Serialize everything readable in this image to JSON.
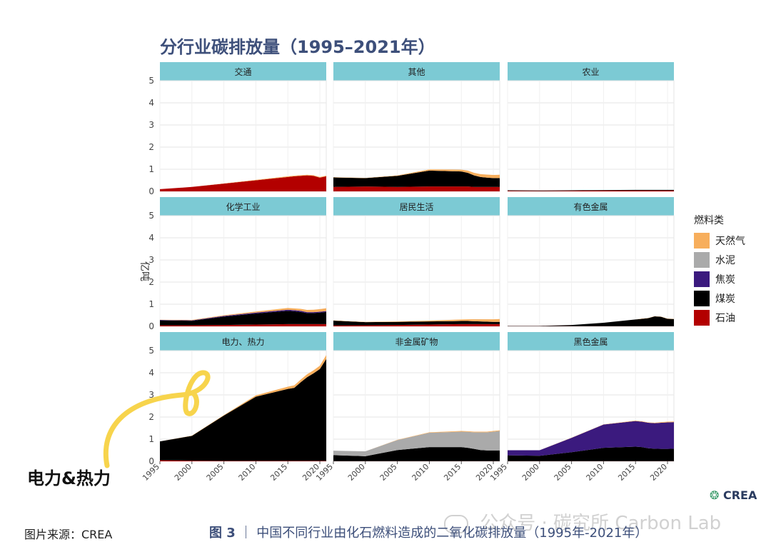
{
  "chart_data": {
    "type": "area",
    "title": "分行业碳排放量（1995–2021年）",
    "ylabel": "亿吨",
    "ylim": [
      0,
      5
    ],
    "yticks": [
      0,
      1,
      2,
      3,
      4,
      5
    ],
    "xlim": [
      1995,
      2021
    ],
    "xticks": [
      1995,
      2000,
      2005,
      2010,
      2015,
      2020
    ],
    "legend_title": "燃料类",
    "stack_order": [
      "石油",
      "煤炭",
      "焦炭",
      "水泥",
      "天然气"
    ],
    "legend": [
      {
        "name": "天然气",
        "color": "#f7ae5c"
      },
      {
        "name": "水泥",
        "color": "#aaaaaa"
      },
      {
        "name": "焦炭",
        "color": "#3b1a7e"
      },
      {
        "name": "煤炭",
        "color": "#000000"
      },
      {
        "name": "石油",
        "color": "#b30000"
      }
    ],
    "years": [
      1995,
      2000,
      2005,
      2010,
      2015,
      2016,
      2017,
      2018,
      2019,
      2020,
      2021
    ],
    "panels": [
      {
        "name": "交通",
        "series": {
          "石油": [
            0.1,
            0.2,
            0.35,
            0.5,
            0.65,
            0.68,
            0.7,
            0.72,
            0.7,
            0.62,
            0.68
          ],
          "煤炭": [
            0,
            0,
            0,
            0,
            0,
            0,
            0,
            0,
            0,
            0,
            0
          ],
          "焦炭": [
            0,
            0,
            0,
            0,
            0,
            0,
            0,
            0,
            0,
            0,
            0
          ],
          "水泥": [
            0,
            0,
            0,
            0,
            0,
            0,
            0,
            0,
            0,
            0,
            0
          ],
          "天然气": [
            0,
            0,
            0.01,
            0.02,
            0.03,
            0.03,
            0.03,
            0.03,
            0.03,
            0.03,
            0.03
          ]
        }
      },
      {
        "name": "其他",
        "series": {
          "石油": [
            0.2,
            0.22,
            0.2,
            0.22,
            0.22,
            0.22,
            0.2,
            0.2,
            0.2,
            0.2,
            0.2
          ],
          "煤炭": [
            0.43,
            0.38,
            0.5,
            0.72,
            0.68,
            0.62,
            0.52,
            0.45,
            0.42,
            0.4,
            0.4
          ],
          "焦炭": [
            0,
            0,
            0,
            0,
            0,
            0,
            0,
            0,
            0,
            0,
            0
          ],
          "水泥": [
            0,
            0,
            0,
            0,
            0,
            0,
            0,
            0,
            0,
            0,
            0
          ],
          "天然气": [
            0.01,
            0.01,
            0.02,
            0.05,
            0.08,
            0.1,
            0.12,
            0.13,
            0.14,
            0.14,
            0.15
          ]
        }
      },
      {
        "name": "农业",
        "series": {
          "石油": [
            0.03,
            0.02,
            0.03,
            0.04,
            0.04,
            0.04,
            0.04,
            0.04,
            0.04,
            0.04,
            0.04
          ],
          "煤炭": [
            0.02,
            0.02,
            0.02,
            0.02,
            0.03,
            0.03,
            0.03,
            0.03,
            0.03,
            0.03,
            0.03
          ],
          "焦炭": [
            0,
            0,
            0,
            0,
            0,
            0,
            0,
            0,
            0,
            0,
            0
          ],
          "水泥": [
            0,
            0,
            0,
            0,
            0,
            0,
            0,
            0,
            0,
            0,
            0
          ],
          "天然气": [
            0,
            0,
            0,
            0,
            0,
            0,
            0,
            0,
            0,
            0,
            0
          ]
        }
      },
      {
        "name": "化学工业",
        "series": {
          "石油": [
            0.05,
            0.05,
            0.06,
            0.08,
            0.1,
            0.1,
            0.1,
            0.1,
            0.1,
            0.1,
            0.1
          ],
          "煤炭": [
            0.22,
            0.2,
            0.38,
            0.5,
            0.6,
            0.58,
            0.55,
            0.5,
            0.5,
            0.52,
            0.55
          ],
          "焦炭": [
            0.02,
            0.02,
            0.03,
            0.04,
            0.05,
            0.05,
            0.05,
            0.04,
            0.04,
            0.04,
            0.04
          ],
          "水泥": [
            0,
            0,
            0,
            0,
            0,
            0,
            0,
            0,
            0,
            0,
            0
          ],
          "天然气": [
            0.01,
            0.02,
            0.03,
            0.05,
            0.08,
            0.08,
            0.09,
            0.1,
            0.11,
            0.12,
            0.13
          ]
        }
      },
      {
        "name": "居民生活",
        "series": {
          "石油": [
            0.04,
            0.05,
            0.06,
            0.08,
            0.1,
            0.1,
            0.1,
            0.1,
            0.1,
            0.1,
            0.1
          ],
          "煤炭": [
            0.22,
            0.14,
            0.14,
            0.14,
            0.14,
            0.14,
            0.13,
            0.12,
            0.11,
            0.1,
            0.1
          ],
          "焦炭": [
            0,
            0,
            0,
            0,
            0,
            0,
            0,
            0,
            0,
            0,
            0
          ],
          "水泥": [
            0,
            0,
            0,
            0,
            0,
            0,
            0,
            0,
            0,
            0,
            0
          ],
          "天然气": [
            0.01,
            0.01,
            0.02,
            0.04,
            0.07,
            0.08,
            0.09,
            0.1,
            0.11,
            0.12,
            0.13
          ]
        }
      },
      {
        "name": "有色金属",
        "series": {
          "石油": [
            0.01,
            0.01,
            0.01,
            0.01,
            0.01,
            0.01,
            0.01,
            0.01,
            0.01,
            0.01,
            0.01
          ],
          "煤炭": [
            0.01,
            0.01,
            0.05,
            0.15,
            0.3,
            0.33,
            0.36,
            0.44,
            0.42,
            0.33,
            0.32
          ],
          "焦炭": [
            0,
            0,
            0,
            0,
            0,
            0,
            0,
            0,
            0,
            0,
            0
          ],
          "水泥": [
            0,
            0,
            0,
            0,
            0,
            0,
            0,
            0,
            0,
            0,
            0
          ],
          "天然气": [
            0,
            0,
            0,
            0,
            0,
            0.01,
            0.01,
            0.01,
            0.01,
            0.01,
            0.01
          ]
        }
      },
      {
        "name": "电力、热力",
        "series": {
          "石油": [
            0.05,
            0.03,
            0.02,
            0.02,
            0.02,
            0.02,
            0.02,
            0.02,
            0.02,
            0.02,
            0.02
          ],
          "煤炭": [
            0.85,
            1.12,
            2.05,
            2.9,
            3.25,
            3.3,
            3.55,
            3.78,
            3.95,
            4.15,
            4.6
          ],
          "焦炭": [
            0,
            0,
            0,
            0,
            0,
            0,
            0,
            0,
            0,
            0,
            0
          ],
          "水泥": [
            0,
            0,
            0,
            0,
            0,
            0,
            0,
            0,
            0,
            0,
            0
          ],
          "天然气": [
            0,
            0.01,
            0.02,
            0.06,
            0.1,
            0.11,
            0.12,
            0.13,
            0.14,
            0.15,
            0.18
          ]
        }
      },
      {
        "name": "非金属矿物",
        "series": {
          "石油": [
            0.01,
            0.01,
            0.01,
            0.01,
            0.01,
            0.01,
            0.01,
            0.01,
            0.01,
            0.01,
            0.01
          ],
          "煤炭": [
            0.27,
            0.22,
            0.5,
            0.63,
            0.63,
            0.6,
            0.55,
            0.5,
            0.48,
            0.48,
            0.48
          ],
          "焦炭": [
            0,
            0,
            0,
            0,
            0,
            0,
            0,
            0,
            0,
            0,
            0
          ],
          "水泥": [
            0.2,
            0.22,
            0.45,
            0.65,
            0.7,
            0.72,
            0.75,
            0.8,
            0.82,
            0.85,
            0.88
          ],
          "天然气": [
            0,
            0,
            0.01,
            0.02,
            0.03,
            0.03,
            0.03,
            0.03,
            0.03,
            0.03,
            0.03
          ]
        }
      },
      {
        "name": "黑色金属",
        "series": {
          "石油": [
            0.01,
            0.01,
            0.01,
            0.01,
            0.01,
            0.01,
            0.01,
            0.01,
            0.01,
            0.01,
            0.01
          ],
          "煤炭": [
            0.26,
            0.24,
            0.4,
            0.6,
            0.65,
            0.63,
            0.58,
            0.56,
            0.55,
            0.55,
            0.56
          ],
          "焦炭": [
            0.23,
            0.25,
            0.65,
            1.05,
            1.16,
            1.15,
            1.15,
            1.15,
            1.18,
            1.2,
            1.2
          ],
          "水泥": [
            0,
            0,
            0,
            0,
            0,
            0,
            0,
            0,
            0,
            0,
            0
          ],
          "天然气": [
            0,
            0,
            0.01,
            0.01,
            0.02,
            0.02,
            0.02,
            0.02,
            0.03,
            0.03,
            0.03
          ]
        }
      }
    ]
  },
  "annotation_text": "电力&热力",
  "logo_text": "CREA",
  "source_text": "图片来源：CREA",
  "caption": {
    "fig": "图 3",
    "sep": "｜",
    "text": "中国不同行业由化石燃料造成的二氧化碳排放量（1995年-2021年）"
  },
  "watermark_text": "公众号 · 碳究所 Carbon Lab",
  "colors": {
    "strip": "#7ccad4",
    "title": "#3d4f7a",
    "grid": "#e6e6e6",
    "highlight": "#f7d44c"
  }
}
